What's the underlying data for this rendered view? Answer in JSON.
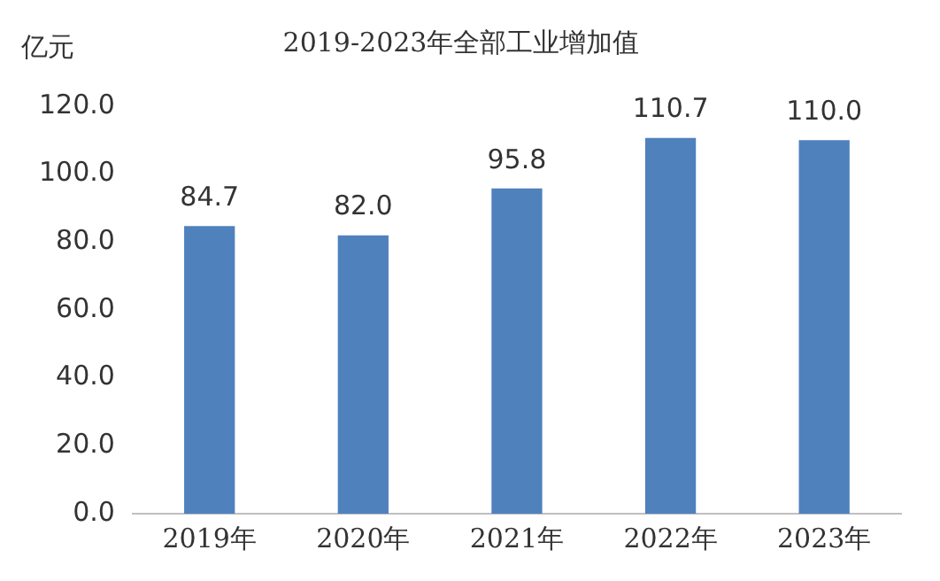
{
  "chart_data": {
    "type": "bar",
    "title": "2019-2023年全部工业增加值",
    "ylabel": "亿元",
    "categories": [
      "2019年",
      "2020年",
      "2021年",
      "2022年",
      "2023年"
    ],
    "values": [
      84.7,
      82.0,
      95.8,
      110.7,
      110.0
    ],
    "value_labels": [
      "84.7",
      "82.0",
      "95.8",
      "110.7",
      "110.0"
    ],
    "color": "#4f81bd",
    "ylim": [
      0,
      120
    ],
    "yticks": [
      {
        "value": 0,
        "label": "0.0"
      },
      {
        "value": 20,
        "label": "20.0"
      },
      {
        "value": 40,
        "label": "40.0"
      },
      {
        "value": 60,
        "label": "60.0"
      },
      {
        "value": 80,
        "label": "80.0"
      },
      {
        "value": 100,
        "label": "100.0"
      },
      {
        "value": 120,
        "label": "120.0"
      }
    ],
    "grid": false,
    "legend": false
  }
}
